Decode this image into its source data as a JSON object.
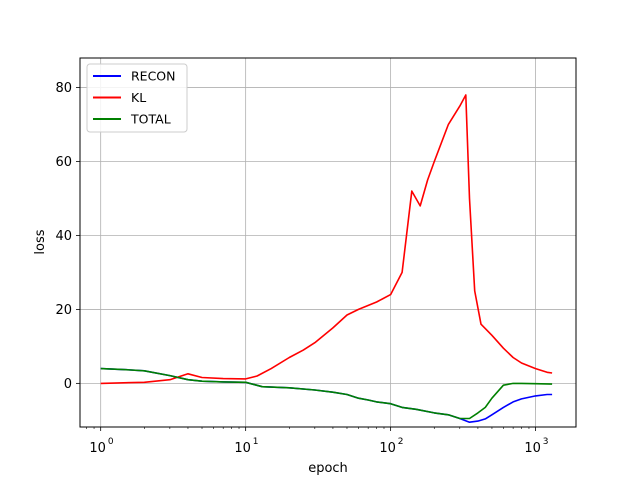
{
  "chart_data": {
    "type": "line",
    "title": "",
    "xlabel": "epoch",
    "ylabel": "loss",
    "xscale": "log",
    "xlim": [
      0.72,
      1900
    ],
    "ylim": [
      -11.8,
      88
    ],
    "x_ticks": [
      {
        "value": 1,
        "label": "10",
        "exp": "0"
      },
      {
        "value": 10,
        "label": "10",
        "exp": "1"
      },
      {
        "value": 100,
        "label": "10",
        "exp": "2"
      },
      {
        "value": 1000,
        "label": "10",
        "exp": "3"
      }
    ],
    "y_ticks": [
      {
        "value": 0,
        "label": "0"
      },
      {
        "value": 20,
        "label": "20"
      },
      {
        "value": 40,
        "label": "40"
      },
      {
        "value": 60,
        "label": "60"
      },
      {
        "value": 80,
        "label": "80"
      }
    ],
    "grid": true,
    "legend_position": "top-left",
    "series": [
      {
        "name": "RECON",
        "color": "#0000ff",
        "points": [
          [
            1,
            4
          ],
          [
            1.5,
            3.7
          ],
          [
            2,
            3.4
          ],
          [
            3,
            2.1
          ],
          [
            4,
            1.0
          ],
          [
            5,
            0.6
          ],
          [
            7,
            0.4
          ],
          [
            10,
            0.3
          ],
          [
            13,
            -0.9
          ],
          [
            20,
            -1.2
          ],
          [
            30,
            -1.8
          ],
          [
            40,
            -2.4
          ],
          [
            50,
            -3.0
          ],
          [
            60,
            -4.0
          ],
          [
            70,
            -4.5
          ],
          [
            80,
            -5.0
          ],
          [
            100,
            -5.5
          ],
          [
            120,
            -6.5
          ],
          [
            150,
            -7.0
          ],
          [
            200,
            -8.0
          ],
          [
            250,
            -8.5
          ],
          [
            300,
            -9.5
          ],
          [
            350,
            -10.5
          ],
          [
            400,
            -10.2
          ],
          [
            450,
            -9.6
          ],
          [
            500,
            -8.5
          ],
          [
            600,
            -6.5
          ],
          [
            700,
            -5.0
          ],
          [
            800,
            -4.2
          ],
          [
            1000,
            -3.4
          ],
          [
            1200,
            -3.0
          ],
          [
            1300,
            -3.0
          ]
        ]
      },
      {
        "name": "KL",
        "color": "#ff0000",
        "points": [
          [
            1,
            0
          ],
          [
            2,
            0.3
          ],
          [
            3,
            1.0
          ],
          [
            4,
            2.6
          ],
          [
            5,
            1.6
          ],
          [
            7,
            1.3
          ],
          [
            10,
            1.2
          ],
          [
            12,
            2.0
          ],
          [
            15,
            4.0
          ],
          [
            20,
            7.0
          ],
          [
            25,
            9.0
          ],
          [
            30,
            11.0
          ],
          [
            40,
            15.0
          ],
          [
            50,
            18.5
          ],
          [
            60,
            20.0
          ],
          [
            80,
            22.0
          ],
          [
            100,
            24.0
          ],
          [
            120,
            30.0
          ],
          [
            140,
            52.0
          ],
          [
            160,
            48.0
          ],
          [
            180,
            55.0
          ],
          [
            200,
            60.0
          ],
          [
            250,
            70.0
          ],
          [
            300,
            75.0
          ],
          [
            330,
            78.0
          ],
          [
            350,
            50.0
          ],
          [
            380,
            25.0
          ],
          [
            420,
            16.0
          ],
          [
            500,
            13.0
          ],
          [
            600,
            9.5
          ],
          [
            700,
            7.0
          ],
          [
            800,
            5.5
          ],
          [
            1000,
            4.0
          ],
          [
            1200,
            3.0
          ],
          [
            1300,
            2.8
          ]
        ]
      },
      {
        "name": "TOTAL",
        "color": "#008000",
        "points": [
          [
            1,
            4
          ],
          [
            1.5,
            3.7
          ],
          [
            2,
            3.4
          ],
          [
            3,
            2.1
          ],
          [
            4,
            1.0
          ],
          [
            5,
            0.6
          ],
          [
            7,
            0.4
          ],
          [
            10,
            0.3
          ],
          [
            13,
            -0.9
          ],
          [
            20,
            -1.2
          ],
          [
            30,
            -1.8
          ],
          [
            40,
            -2.4
          ],
          [
            50,
            -3.0
          ],
          [
            60,
            -4.0
          ],
          [
            70,
            -4.5
          ],
          [
            80,
            -5.0
          ],
          [
            100,
            -5.5
          ],
          [
            120,
            -6.5
          ],
          [
            150,
            -7.0
          ],
          [
            200,
            -8.0
          ],
          [
            250,
            -8.5
          ],
          [
            300,
            -9.5
          ],
          [
            350,
            -9.5
          ],
          [
            400,
            -8.0
          ],
          [
            450,
            -6.5
          ],
          [
            500,
            -4.0
          ],
          [
            600,
            -0.5
          ],
          [
            700,
            0
          ],
          [
            800,
            0
          ],
          [
            1000,
            -0.1
          ],
          [
            1300,
            -0.2
          ]
        ]
      }
    ]
  }
}
